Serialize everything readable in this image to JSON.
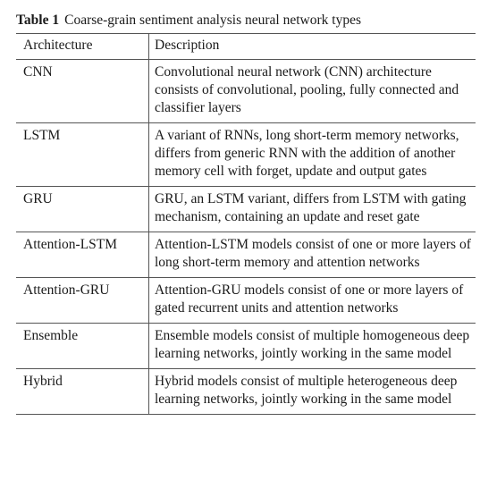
{
  "caption": {
    "label": "Table 1",
    "title": "Coarse-grain sentiment analysis neural network types"
  },
  "table": {
    "headers": {
      "architecture": "Architecture",
      "description": "Description"
    },
    "rows": [
      {
        "architecture": "CNN",
        "description": "Convolutional neural network (CNN) architecture consists of convolutional, pooling, fully connected and classifier layers"
      },
      {
        "architecture": "LSTM",
        "description": "A variant of RNNs, long short-term memory networks, differs from generic RNN with the addition of another memory cell with forget, update and output gates"
      },
      {
        "architecture": "GRU",
        "description": "GRU, an LSTM variant, differs from LSTM with gating mechanism, containing an update and reset gate"
      },
      {
        "architecture": "Attention-LSTM",
        "description": "Attention-LSTM models consist of one or more layers of long short-term memory and attention networks"
      },
      {
        "architecture": "Attention-GRU",
        "description": "Attention-GRU models consist of one or more layers of gated recurrent units and attention networks"
      },
      {
        "architecture": "Ensemble",
        "description": "Ensemble models consist of multiple homogeneous deep learning networks, jointly working in the same model"
      },
      {
        "architecture": "Hybrid",
        "description": "Hybrid models consist of multiple heterogeneous deep learning networks, jointly working in the same model"
      }
    ]
  }
}
